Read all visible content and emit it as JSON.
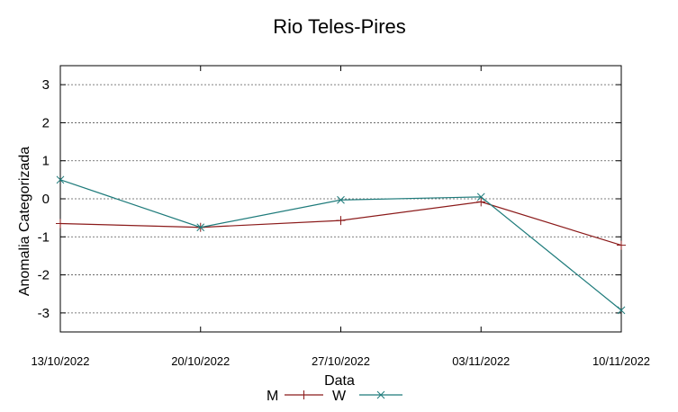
{
  "chart_data": {
    "type": "line",
    "title": "Rio Teles-Pires",
    "xlabel": "Data",
    "ylabel": "Anomalia Categorizada",
    "categories": [
      "13/10/2022",
      "20/10/2022",
      "27/10/2022",
      "03/11/2022",
      "10/11/2022"
    ],
    "ylim": [
      -3.5,
      3.5
    ],
    "yticks": [
      -3,
      -2,
      -1,
      0,
      1,
      2,
      3
    ],
    "grid": true,
    "legend_position": "bottom-center",
    "series": [
      {
        "name": "M",
        "values": [
          -0.65,
          -0.75,
          -0.57,
          -0.08,
          -1.22
        ],
        "color": "#8b1a1a",
        "marker": "plus"
      },
      {
        "name": "W",
        "values": [
          0.5,
          -0.75,
          -0.03,
          0.05,
          -2.93
        ],
        "color": "#1e7b7b",
        "marker": "cross"
      }
    ]
  }
}
